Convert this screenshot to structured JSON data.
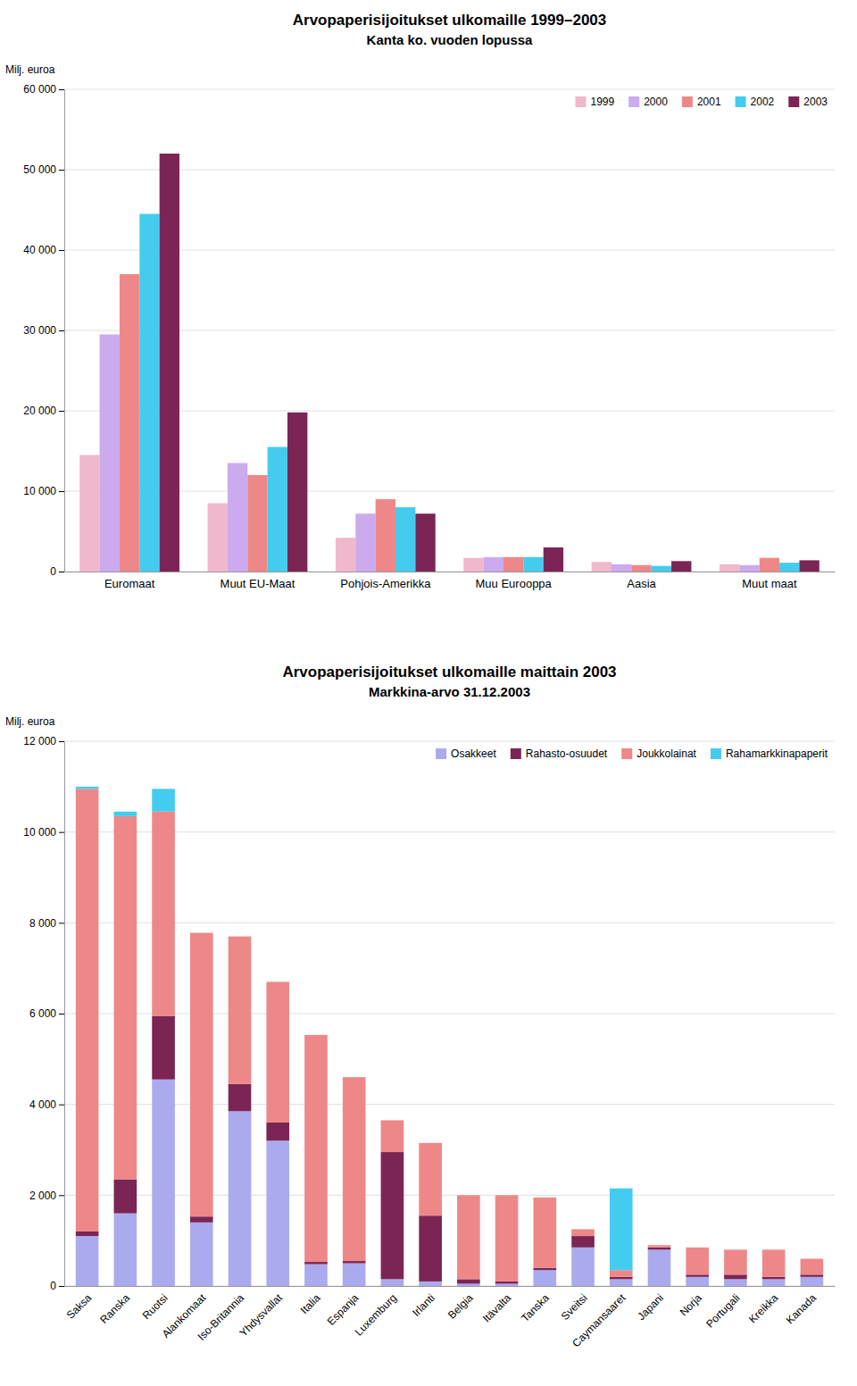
{
  "chart_data": [
    {
      "type": "bar",
      "title": "Arvopaperisijoitukset ulkomaille 1999–2003",
      "subtitle": "Kanta ko. vuoden lopussa",
      "y_label": "Milj. euroa",
      "categories": [
        "Euromaat",
        "Muut EU-Maat",
        "Pohjois-Amerikka",
        "Muu Eurooppa",
        "Aasia",
        "Muut maat"
      ],
      "series": [
        {
          "name": "1999",
          "color": "#f0b8cc",
          "values": [
            14500,
            8500,
            4200,
            1700,
            1200,
            900
          ]
        },
        {
          "name": "2000",
          "color": "#ccaaee",
          "values": [
            29500,
            13500,
            7200,
            1800,
            900,
            800
          ]
        },
        {
          "name": "2001",
          "color": "#ee8888",
          "values": [
            37000,
            12000,
            9000,
            1800,
            800,
            1700
          ]
        },
        {
          "name": "2002",
          "color": "#44ccee",
          "values": [
            44500,
            15500,
            8000,
            1800,
            700,
            1100
          ]
        },
        {
          "name": "2003",
          "color": "#7b2555",
          "values": [
            52000,
            19800,
            7200,
            3000,
            1300,
            1400
          ]
        }
      ],
      "ylim": [
        0,
        60000
      ],
      "yticks": [
        0,
        {
          "value": 10000,
          "label": "10 000"
        },
        {
          "value": 20000,
          "label": "20 000"
        },
        {
          "value": 30000,
          "label": "30 000"
        },
        {
          "value": 40000,
          "label": "40 000"
        },
        {
          "value": 50000,
          "label": "50 000"
        },
        {
          "value": 60000,
          "label": "60 000"
        }
      ],
      "grid": true,
      "legend": "upper right"
    },
    {
      "type": "bar",
      "title": "Arvopaperisijoitukset ulkomaille maittain 2003",
      "subtitle": "Markkina-arvo 31.12.2003",
      "y_label": "Milj. euroa",
      "categories": [
        "Saksa",
        "Ranska",
        "Ruotsi",
        "Alankomaat",
        "Iso-Britannia",
        "Yhdysvallat",
        "Italia",
        "Espanja",
        "Luxemburg",
        "Irlanti",
        "Belgia",
        "Itävalta",
        "Tanska",
        "Sveitsi",
        "Caymansaaret",
        "Japani",
        "Norja",
        "Portugali",
        "Kreikka",
        "Kanada"
      ],
      "series": [
        {
          "name": "Osakkeet",
          "color": "#aaaaee",
          "values": [
            1100,
            1600,
            4550,
            1400,
            3850,
            3200,
            480,
            500,
            150,
            100,
            50,
            50,
            350,
            850,
            150,
            800,
            200,
            150,
            150,
            200
          ]
        },
        {
          "name": "Rahasto-osuudet",
          "color": "#7b2555",
          "values": [
            100,
            750,
            1400,
            130,
            600,
            400,
            50,
            50,
            2800,
            1450,
            100,
            50,
            50,
            250,
            50,
            50,
            50,
            100,
            50,
            50
          ]
        },
        {
          "name": "Joukkolainat",
          "color": "#ee8888",
          "values": [
            9750,
            8000,
            4500,
            6250,
            3250,
            3100,
            5000,
            4050,
            700,
            1600,
            1850,
            1900,
            1550,
            150,
            150,
            50,
            600,
            550,
            600,
            350
          ]
        },
        {
          "name": "Rahamarkkinapaperit",
          "color": "#44ccee",
          "values": [
            50,
            100,
            500,
            0,
            0,
            0,
            0,
            0,
            0,
            0,
            0,
            0,
            0,
            0,
            1800,
            0,
            0,
            0,
            0,
            0
          ]
        }
      ],
      "stacked": true,
      "ylim": [
        0,
        12000
      ],
      "yticks": [
        0,
        {
          "value": 2000,
          "label": "2 000"
        },
        {
          "value": 4000,
          "label": "4 000"
        },
        {
          "value": 6000,
          "label": "6 000"
        },
        {
          "value": 8000,
          "label": "8 000"
        },
        {
          "value": 10000,
          "label": "10 000"
        },
        {
          "value": 12000,
          "label": "12 000"
        }
      ],
      "grid": true,
      "legend": "upper right"
    }
  ]
}
